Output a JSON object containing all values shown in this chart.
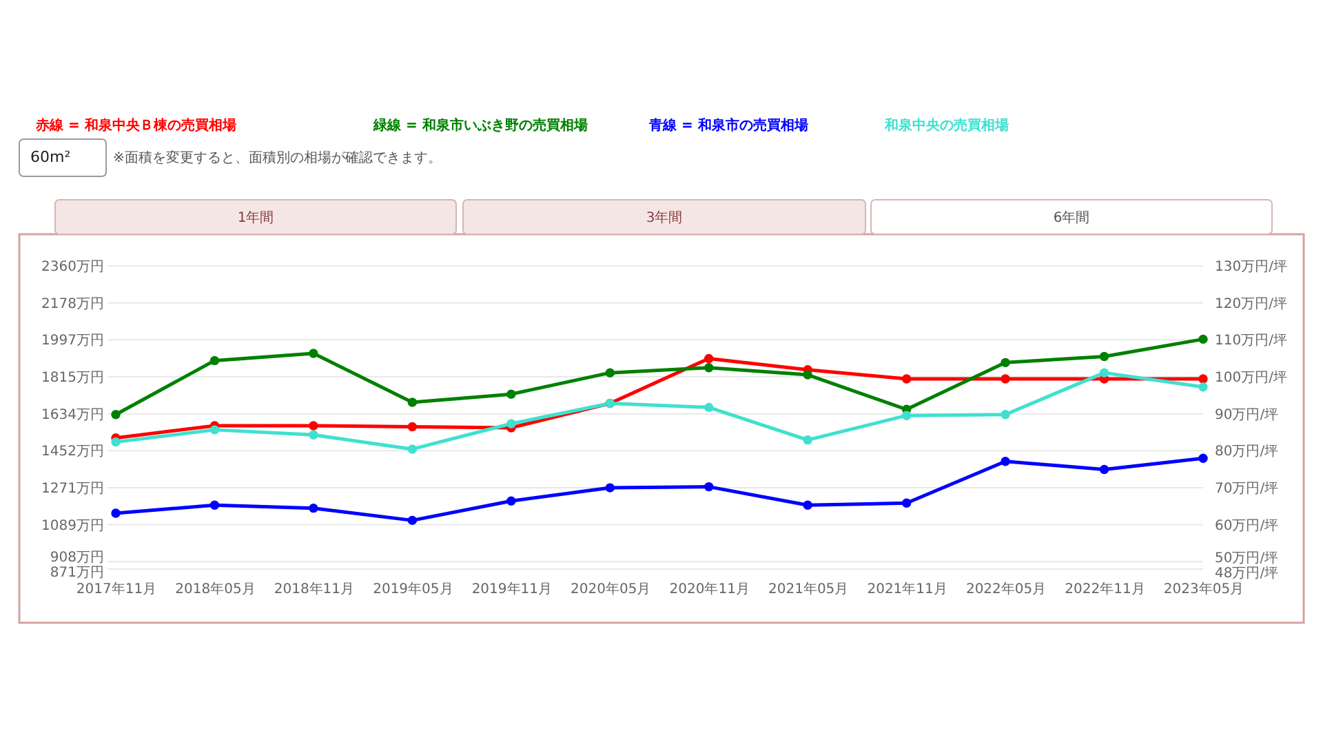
{
  "chart_data": {
    "type": "line",
    "categories": [
      "2017年11月",
      "2018年05月",
      "2018年11月",
      "2019年05月",
      "2019年11月",
      "2020年05月",
      "2020年11月",
      "2021年05月",
      "2021年11月",
      "2022年05月",
      "2022年11月",
      "2023年05月"
    ],
    "series": [
      {
        "name": "赤線 = 和泉中央Ｂ棟の売買相場",
        "color": "#ff0000",
        "values": [
          1515,
          1575,
          1575,
          1570,
          1565,
          1685,
          1905,
          1850,
          1805,
          1805,
          1805,
          1805
        ]
      },
      {
        "name": "緑線 = 和泉市いぶき野の売買相場",
        "color": "#008000",
        "values": [
          1630,
          1895,
          1930,
          1690,
          1730,
          1835,
          1860,
          1825,
          1655,
          1885,
          1915,
          2000
        ]
      },
      {
        "name": "青線 = 和泉市の売買相場",
        "color": "#0000ff",
        "values": [
          1145,
          1185,
          1170,
          1110,
          1205,
          1270,
          1275,
          1185,
          1195,
          1400,
          1360,
          1415
        ]
      },
      {
        "name": "和泉中央の売買相場",
        "color": "#40e0d0",
        "values": [
          1495,
          1555,
          1530,
          1460,
          1585,
          1685,
          1665,
          1505,
          1625,
          1630,
          1835,
          1765
        ]
      }
    ],
    "ylim": [
      871,
      2360
    ],
    "yticks": [
      {
        "value": 2360,
        "label": "2360万円"
      },
      {
        "value": 2178,
        "label": "2178万円"
      },
      {
        "value": 1997,
        "label": "1997万円"
      },
      {
        "value": 1815,
        "label": "1815万円"
      },
      {
        "value": 1634,
        "label": "1634万円"
      },
      {
        "value": 1452,
        "label": "1452万円"
      },
      {
        "value": 1271,
        "label": "1271万円"
      },
      {
        "value": 1089,
        "label": "1089万円"
      },
      {
        "value": 908,
        "label": "908万円"
      },
      {
        "value": 871,
        "label": "871万円"
      }
    ],
    "y2lim": [
      48,
      130
    ],
    "y2ticks": [
      {
        "value": 130,
        "label": "130万円/坪"
      },
      {
        "value": 120,
        "label": "120万円/坪"
      },
      {
        "value": 110,
        "label": "110万円/坪"
      },
      {
        "value": 100,
        "label": "100万円/坪"
      },
      {
        "value": 90,
        "label": "90万円/坪"
      },
      {
        "value": 80,
        "label": "80万円/坪"
      },
      {
        "value": 70,
        "label": "70万円/坪"
      },
      {
        "value": 60,
        "label": "60万円/坪"
      },
      {
        "value": 50,
        "label": "50万円/坪"
      },
      {
        "value": 48,
        "label": "48万円/坪"
      }
    ],
    "grid": "y",
    "legend": "top",
    "marker": "circle",
    "line_style": "solid",
    "annotations": [
      "60m²",
      "※面積を変更すると、面積別の相場が確認できます。",
      "1年間",
      "3年間",
      "6年間"
    ]
  }
}
